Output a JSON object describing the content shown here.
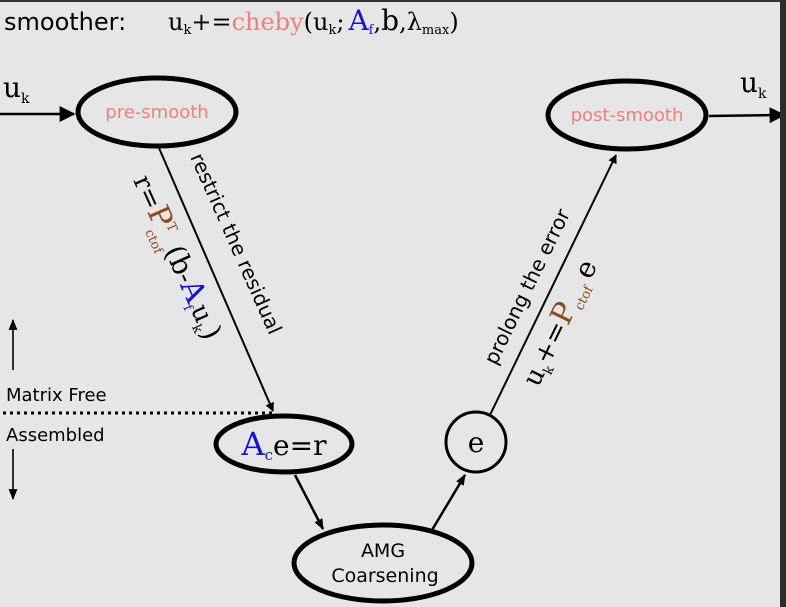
{
  "title": {
    "prefix": "smoother:",
    "u": "u",
    "k": "k",
    "op": "+=",
    "func": "cheby",
    "open": "(",
    "semi": ";",
    "A": "A",
    "f": "f",
    "comma1": ",",
    "b": "b",
    "comma2": ",",
    "lambda": "λ",
    "max": "max",
    "close": ")"
  },
  "input": {
    "u": "u",
    "k": "k"
  },
  "output": {
    "u": "u",
    "k": "k"
  },
  "nodes": {
    "pre_smooth": "pre-smooth",
    "post_smooth": "post-smooth",
    "coarse_solve": {
      "A": "A",
      "c": "c",
      "rest": "e=r"
    },
    "error": "e",
    "amg": {
      "line1": "AMG",
      "line2": "Coarsening"
    }
  },
  "edges": {
    "restrict_label": "restrict the residual",
    "prolong_label": "prolong the error"
  },
  "formulas": {
    "restrict": {
      "r": "r",
      "eq": "=",
      "P": "P",
      "T": "T",
      "ctof": "ctof",
      "open": "(",
      "b": "b",
      "minus": "-",
      "A": "A",
      "f": "f",
      "u": "u",
      "k": "k",
      "close": ")"
    },
    "prolong": {
      "u": "u",
      "k": "k",
      "op": "+=",
      "P": "P",
      "ctof": "ctof",
      "e": "e"
    }
  },
  "side_labels": {
    "matrix_free": "Matrix Free",
    "assembled": "Assembled"
  },
  "colors": {
    "background": "#e6e6e6",
    "salmon": "#f08080",
    "blue": "#1515d0",
    "brown": "#8b4a1f",
    "ink": "#000000"
  }
}
